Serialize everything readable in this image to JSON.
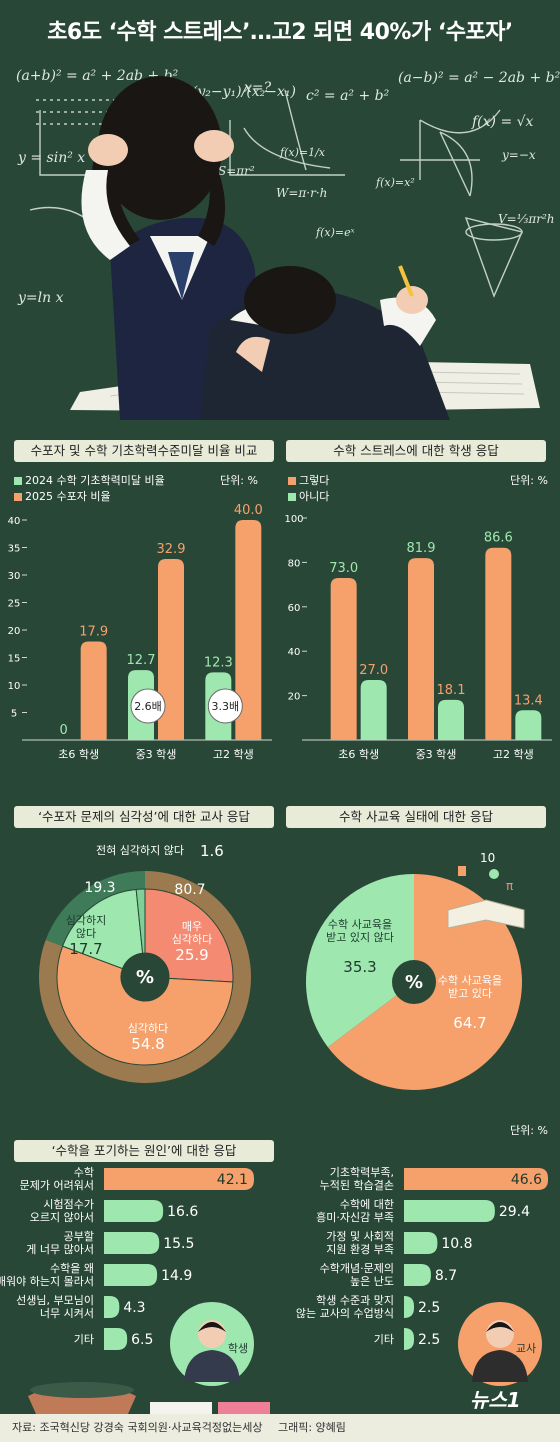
{
  "header": {
    "title": "초6도 ‘수학 스트레스’…고2 되면 40%가 ‘수포자’",
    "formulas": [
      "(a+b)² = a² + 2ab + b²",
      "m = (y₂−y₁)/(x₂−x₁)",
      "x=?",
      "c² = a² + b²",
      "(a−b)² = a² − 2ab + b²",
      "f(x) = √x",
      "y = sin² x",
      "f(x)=1/x",
      "S=πr²",
      "W=π·r·h",
      "f(x)=x²",
      "y=−x",
      "y=ln x",
      "f(x)=eˣ",
      "V=⅓πr²h"
    ]
  },
  "colors": {
    "green": "#9ee8b0",
    "orange": "#f6a06c",
    "salmon": "#f48a72",
    "darkgreen": "#2e6b4a",
    "tan": "#d9a06b",
    "banner": "#e9ebd9",
    "board": "#294737"
  },
  "chart_data": [
    {
      "type": "bar",
      "title": "수포자 및 수학 기초학력수준미달 비율 비교",
      "unit": "단위: %",
      "categories": [
        "초6 학생",
        "중3 학생",
        "고2 학생"
      ],
      "series": [
        {
          "name": "2024 수학 기초학력미달 비율",
          "values": [
            0,
            12.7,
            12.3
          ]
        },
        {
          "name": "2025 수포자 비율",
          "values": [
            17.9,
            32.9,
            40.0
          ]
        }
      ],
      "ratios": [
        "2.6배",
        "3.3배"
      ],
      "yticks": [
        "5",
        "10",
        "15",
        "20",
        "25",
        "30",
        "35",
        "40"
      ],
      "ylim": [
        0,
        40
      ]
    },
    {
      "type": "bar",
      "title": "수학 스트레스에 대한 학생 응답",
      "unit": "단위: %",
      "categories": [
        "초6 학생",
        "중3 학생",
        "고2 학생"
      ],
      "series": [
        {
          "name": "그렇다",
          "values": [
            73.0,
            81.9,
            86.6
          ]
        },
        {
          "name": "아니다",
          "values": [
            27.0,
            18.1,
            13.4
          ]
        }
      ],
      "yticks": [
        "20",
        "40",
        "60",
        "80",
        "100"
      ],
      "ylim": [
        0,
        100
      ]
    },
    {
      "type": "pie",
      "title": "‘수포자 문제의 심각성’에 대한 교사 응답",
      "center": "%",
      "outer": [
        {
          "label": "",
          "value": 80.7
        },
        {
          "label": "",
          "value": 19.3
        }
      ],
      "inner": [
        {
          "label": "매우 심각하다",
          "value": 25.9
        },
        {
          "label": "심각하다",
          "value": 54.8
        },
        {
          "label": "심각하지 않다",
          "value": 17.7
        },
        {
          "label": "전혀 심각하지 않다",
          "value": 1.6
        }
      ]
    },
    {
      "type": "pie",
      "title": "수학 사교육 실태에 대한 응답",
      "center": "%",
      "slices": [
        {
          "label": "수학 사교육을 받고 있다",
          "value": 64.7
        },
        {
          "label": "수학 사교육을 받고 있지 않다",
          "value": 35.3
        }
      ]
    },
    {
      "type": "bar",
      "title": "‘수학을 포기하는 원인’에 대한 응답",
      "unit": "단위: %",
      "groups": [
        {
          "name": "학생",
          "items": [
            {
              "label": "수학 문제가 어려워서",
              "value": 42.1
            },
            {
              "label": "시험점수가 오르지 않아서",
              "value": 16.6
            },
            {
              "label": "공부할 게 너무 많아서",
              "value": 15.5
            },
            {
              "label": "수학을 왜 배워야 하는지 몰라서",
              "value": 14.9
            },
            {
              "label": "선생님, 부모님이 너무 시켜서",
              "value": 4.3
            },
            {
              "label": "기타",
              "value": 6.5
            }
          ]
        },
        {
          "name": "교사",
          "items": [
            {
              "label": "기초학력부족, 누적된 학습결손",
              "value": 46.6
            },
            {
              "label": "수학에 대한 흥미·자신감 부족",
              "value": 29.4
            },
            {
              "label": "가정 및 사회적 지원 환경 부족",
              "value": 10.8
            },
            {
              "label": "수학개념·문제의 높은 난도",
              "value": 8.7
            },
            {
              "label": "학생 수준과 맞지 않는 교사의 수업방식",
              "value": 2.5
            },
            {
              "label": "기타",
              "value": 2.5
            }
          ]
        }
      ]
    }
  ],
  "footer": {
    "source": "자료: 조국혁신당 강경숙 국회의원·사교육걱정없는세상",
    "graphic": "그래픽: 양혜림",
    "logo": "뉴스1"
  }
}
